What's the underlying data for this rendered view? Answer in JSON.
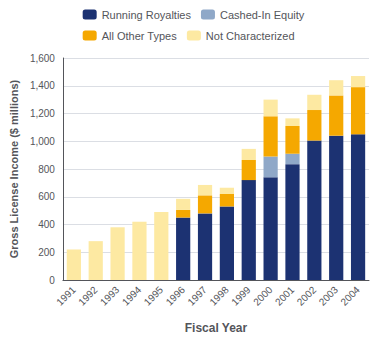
{
  "chart_data": {
    "type": "bar",
    "stacked": true,
    "grid": true,
    "legend": "top",
    "xlabel": "Fiscal Year",
    "ylabel": "Gross License Income ($ millions)",
    "categories": [
      "1991",
      "1992",
      "1993",
      "1994",
      "1995",
      "1996",
      "1997",
      "1998",
      "1999",
      "2000",
      "2001",
      "2002",
      "2003",
      "2004"
    ],
    "series": [
      {
        "name": "Running Royalties",
        "color": "#1c3272",
        "values": [
          0,
          0,
          0,
          0,
          0,
          450,
          480,
          530,
          720,
          740,
          835,
          1005,
          1040,
          1050
        ]
      },
      {
        "name": "Cashed-In Equity",
        "color": "#8fa8c8",
        "values": [
          0,
          0,
          0,
          0,
          0,
          0,
          0,
          0,
          0,
          150,
          75,
          0,
          0,
          0
        ]
      },
      {
        "name": "All Other Types",
        "color": "#f5a800",
        "values": [
          0,
          0,
          0,
          0,
          0,
          55,
          130,
          90,
          145,
          290,
          200,
          220,
          290,
          340
        ]
      },
      {
        "name": "Not Characterized",
        "color": "#fde9a2",
        "values": [
          220,
          280,
          380,
          420,
          490,
          80,
          75,
          45,
          80,
          120,
          55,
          110,
          110,
          80
        ]
      }
    ],
    "ylim": [
      0,
      1600
    ],
    "yticks": [
      0,
      200,
      400,
      600,
      800,
      {
        "value": 1000,
        "label": "1,000"
      },
      {
        "value": 1200,
        "label": "1,200"
      },
      {
        "value": 1400,
        "label": "1,400"
      },
      {
        "value": 1600,
        "label": "1,600"
      }
    ]
  }
}
